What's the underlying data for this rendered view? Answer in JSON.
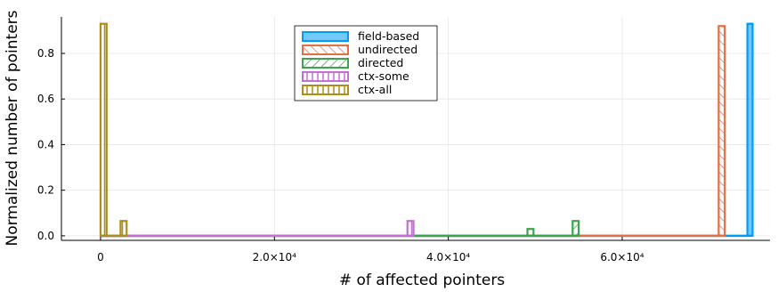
{
  "chart_data": {
    "type": "bar",
    "title": "",
    "xlabel": "# of affected pointers",
    "ylabel": "Normalized number of pointers",
    "xlim": [
      -4500,
      77000
    ],
    "ylim": [
      -0.02,
      0.96
    ],
    "x_ticks": [
      {
        "value": 0,
        "label": "0"
      },
      {
        "value": 20000,
        "label": "2.0×10⁴"
      },
      {
        "value": 40000,
        "label": "4.0×10⁴"
      },
      {
        "value": 60000,
        "label": "6.0×10⁴"
      }
    ],
    "y_ticks": [
      {
        "value": 0.0,
        "label": "0.0"
      },
      {
        "value": 0.2,
        "label": "0.2"
      },
      {
        "value": 0.4,
        "label": "0.4"
      },
      {
        "value": 0.6,
        "label": "0.6"
      },
      {
        "value": 0.8,
        "label": "0.8"
      }
    ],
    "grid": true,
    "legend_position": "top-center",
    "series": [
      {
        "name": "field-based",
        "color": "#009AFA",
        "fill": "solid",
        "x_range": [
          0,
          75000
        ],
        "bars": [
          {
            "x": [
              74400,
              75000
            ],
            "value": 0.93
          }
        ]
      },
      {
        "name": "undirected",
        "color": "#E26F46",
        "fill": "diagonal",
        "x_range": [
          0,
          71800
        ],
        "bars": [
          {
            "x": [
              71100,
              71800
            ],
            "value": 0.92
          }
        ]
      },
      {
        "name": "directed",
        "color": "#3DA44D",
        "fill": "backdiagonal",
        "x_range": [
          0,
          55000
        ],
        "bars": [
          {
            "x": [
              49100,
              49800
            ],
            "value": 0.03
          },
          {
            "x": [
              54300,
              55000
            ],
            "value": 0.065
          }
        ]
      },
      {
        "name": "ctx-some",
        "color": "#C271D2",
        "fill": "vertical",
        "x_range": [
          0,
          36000
        ],
        "bars": [
          {
            "x": [
              35300,
              36000
            ],
            "value": 0.065
          }
        ]
      },
      {
        "name": "ctx-all",
        "color": "#AC8E18",
        "fill": "vertical",
        "x_range": [
          0,
          3000
        ],
        "bars": [
          {
            "x": [
              0,
              700
            ],
            "value": 0.93
          },
          {
            "x": [
              2300,
              3000
            ],
            "value": 0.065
          }
        ]
      }
    ]
  }
}
